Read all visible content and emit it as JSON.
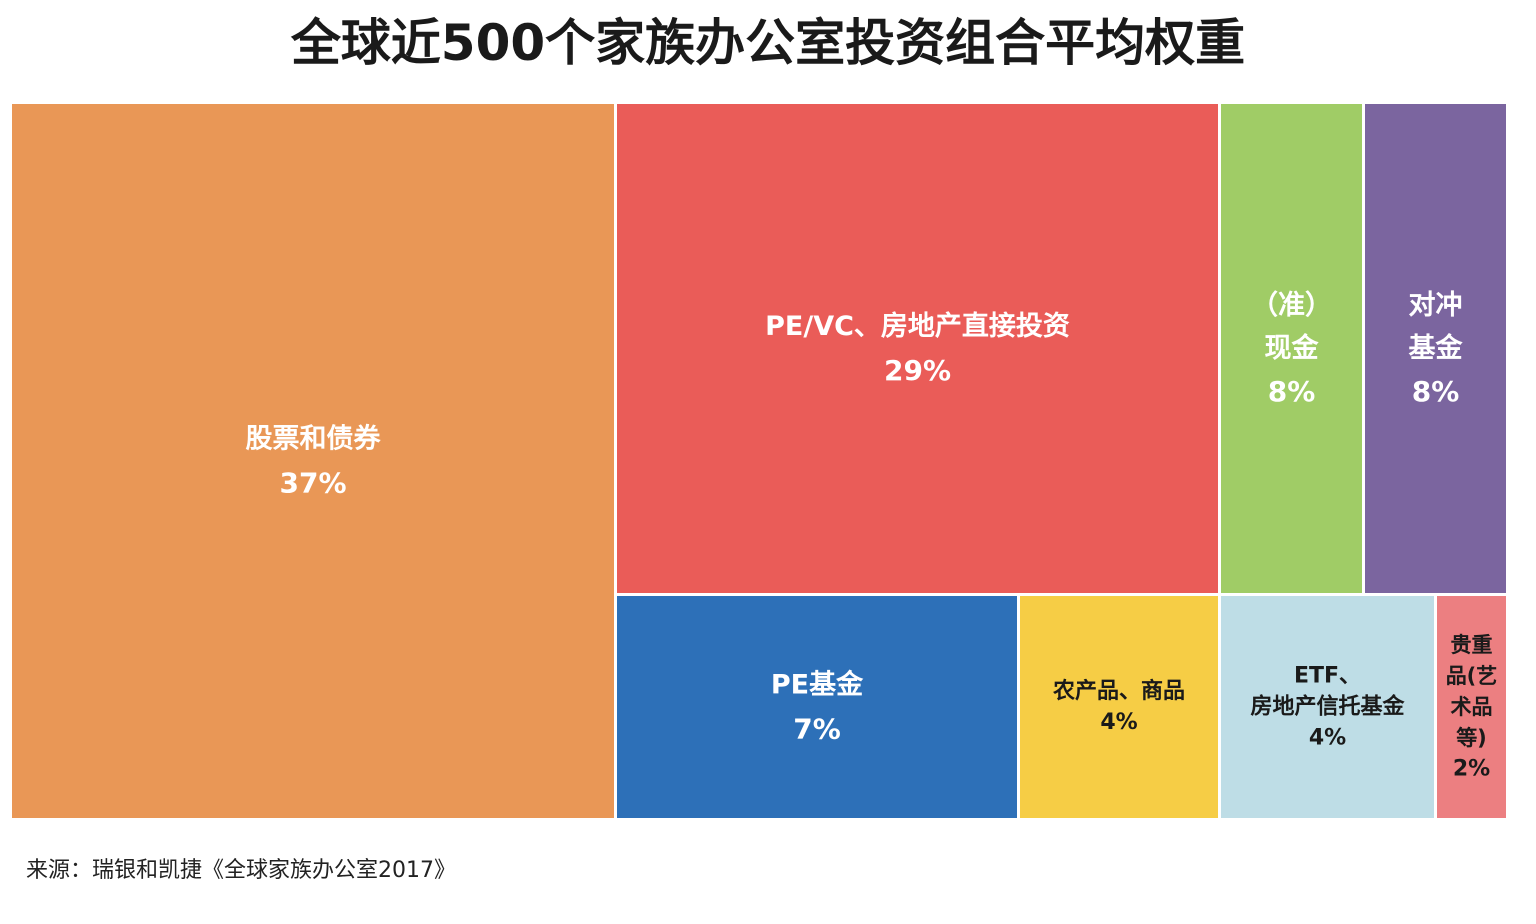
{
  "chart_data": {
    "type": "treemap",
    "title": "全球近500个家族办公室投资组合平均权重",
    "source": "来源：瑞银和凯捷《全球家族办公室2017》",
    "items": [
      {
        "label": "股票和债券",
        "label_lines": [
          "股票和债券"
        ],
        "value_label": "37%",
        "value": 37,
        "color": "#E99756",
        "text_color": "#ffffff"
      },
      {
        "label": "PE/VC、房地产直接投资",
        "label_lines": [
          "PE/VC、房地产直接投资"
        ],
        "value_label": "29%",
        "value": 29,
        "color": "#EA5C58",
        "text_color": "#ffffff"
      },
      {
        "label": "（准）现金",
        "label_lines": [
          "（准）",
          "现金"
        ],
        "value_label": "8%",
        "value": 8,
        "color": "#A0CC66",
        "text_color": "#ffffff"
      },
      {
        "label": "对冲基金",
        "label_lines": [
          "对冲",
          "基金"
        ],
        "value_label": "8%",
        "value": 8,
        "color": "#7B659F",
        "text_color": "#ffffff"
      },
      {
        "label": "PE基金",
        "label_lines": [
          "PE基金"
        ],
        "value_label": "7%",
        "value": 7,
        "color": "#2D70B8",
        "text_color": "#ffffff"
      },
      {
        "label": "农产品、商品",
        "label_lines": [
          "农产品、商品"
        ],
        "value_label": "4%",
        "value": 4,
        "color": "#F6CD45",
        "text_color": "#1a1a1a"
      },
      {
        "label": "ETF、房地产信托基金",
        "label_lines": [
          "ETF、",
          "房地产信托基金"
        ],
        "value_label": "4%",
        "value": 4,
        "color": "#BEDDE6",
        "text_color": "#1a1a1a"
      },
      {
        "label": "贵重品(艺术品等)",
        "label_lines": [
          "贵重",
          "品(艺",
          "术品",
          "等)"
        ],
        "value_label": "2%",
        "value": 2,
        "color": "#EC7F81",
        "text_color": "#1a1a1a"
      }
    ]
  }
}
